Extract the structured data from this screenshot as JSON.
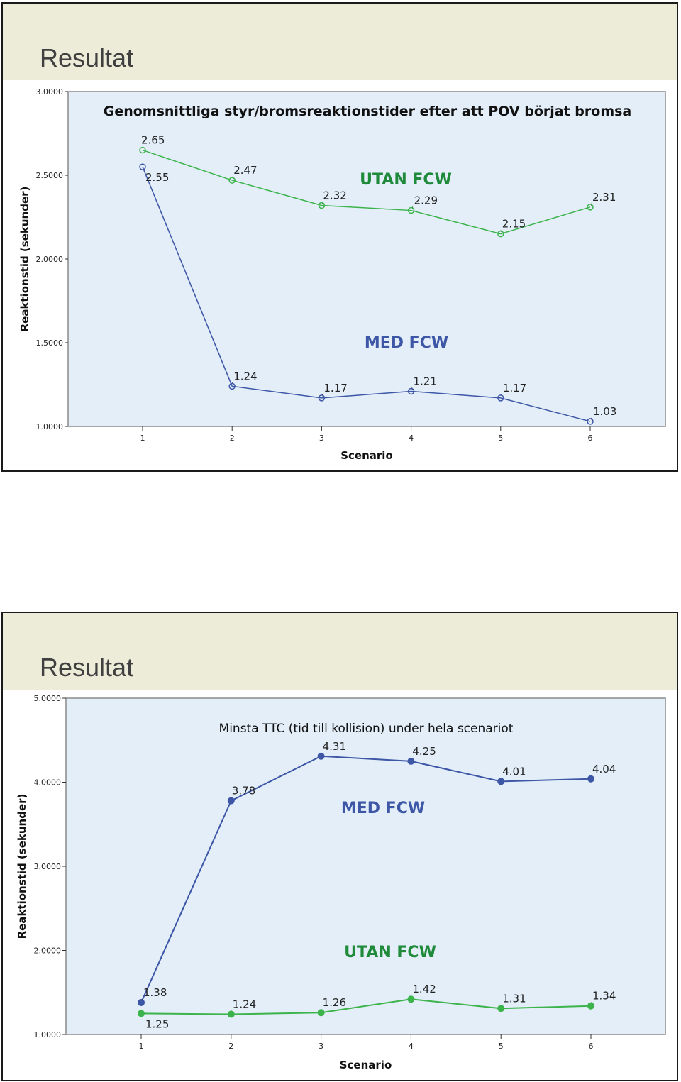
{
  "slides": [
    {
      "title": "Resultat"
    },
    {
      "title": "Resultat"
    }
  ],
  "chart_data": [
    {
      "type": "line",
      "title": "Genomsnittliga styr/bromsreaktionstider efter att POV börjat bromsa",
      "xlabel": "Scenario",
      "ylabel": "Reaktionstid (sekunder)",
      "x": [
        1,
        2,
        3,
        4,
        5,
        6
      ],
      "xticks": [
        "1",
        "2",
        "3",
        "4",
        "5",
        "6"
      ],
      "ylim": [
        1.0,
        3.0
      ],
      "yticks": [
        {
          "value": 1.0,
          "label": "1.0000"
        },
        {
          "value": 1.5,
          "label": "1.5000"
        },
        {
          "value": 2.0,
          "label": "2.0000"
        },
        {
          "value": 2.5,
          "label": "2.5000"
        },
        {
          "value": 3.0,
          "label": "3.0000"
        }
      ],
      "marker": "hollow",
      "series": [
        {
          "name": "UTAN FCW",
          "color": "#3cb44b",
          "label_color": "#1e8a3a",
          "values": [
            2.65,
            2.47,
            2.32,
            2.29,
            2.15,
            2.31
          ],
          "labels": [
            "2.65",
            "2.47",
            "2.32",
            "2.29",
            "2.15",
            "2.31"
          ]
        },
        {
          "name": "MED FCW",
          "color": "#3d56a6",
          "label_color": "#3d56a6",
          "values": [
            2.55,
            1.24,
            1.17,
            1.21,
            1.17,
            1.03
          ],
          "labels": [
            "2.55",
            "1.24",
            "1.17",
            "1.21",
            "1.17",
            "1.03"
          ]
        }
      ]
    },
    {
      "type": "line",
      "title": "Minsta TTC (tid till kollision) under hela scenariot",
      "xlabel": "Scenario",
      "ylabel": "Reaktionstid (sekunder)",
      "x": [
        1,
        2,
        3,
        4,
        5,
        6
      ],
      "xticks": [
        "1",
        "2",
        "3",
        "4",
        "5",
        "6"
      ],
      "ylim": [
        1.0,
        5.0
      ],
      "yticks": [
        {
          "value": 1.0,
          "label": "1.0000"
        },
        {
          "value": 2.0,
          "label": "2.0000"
        },
        {
          "value": 3.0,
          "label": "3.0000"
        },
        {
          "value": 4.0,
          "label": "4.0000"
        },
        {
          "value": 5.0,
          "label": "5.0000"
        }
      ],
      "marker": "filled",
      "series": [
        {
          "name": "MED FCW",
          "color": "#3d56a6",
          "label_color": "#3d56a6",
          "values": [
            1.38,
            3.78,
            4.31,
            4.25,
            4.01,
            4.04
          ],
          "labels": [
            "1.38",
            "3.78",
            "4.31",
            "4.25",
            "4.01",
            "4.04"
          ]
        },
        {
          "name": "UTAN FCW",
          "color": "#3cb44b",
          "label_color": "#1e8a3a",
          "values": [
            1.25,
            1.24,
            1.26,
            1.42,
            1.31,
            1.34
          ],
          "labels": [
            "1.25",
            "1.24",
            "1.26",
            "1.42",
            "1.31",
            "1.34"
          ]
        }
      ]
    }
  ]
}
